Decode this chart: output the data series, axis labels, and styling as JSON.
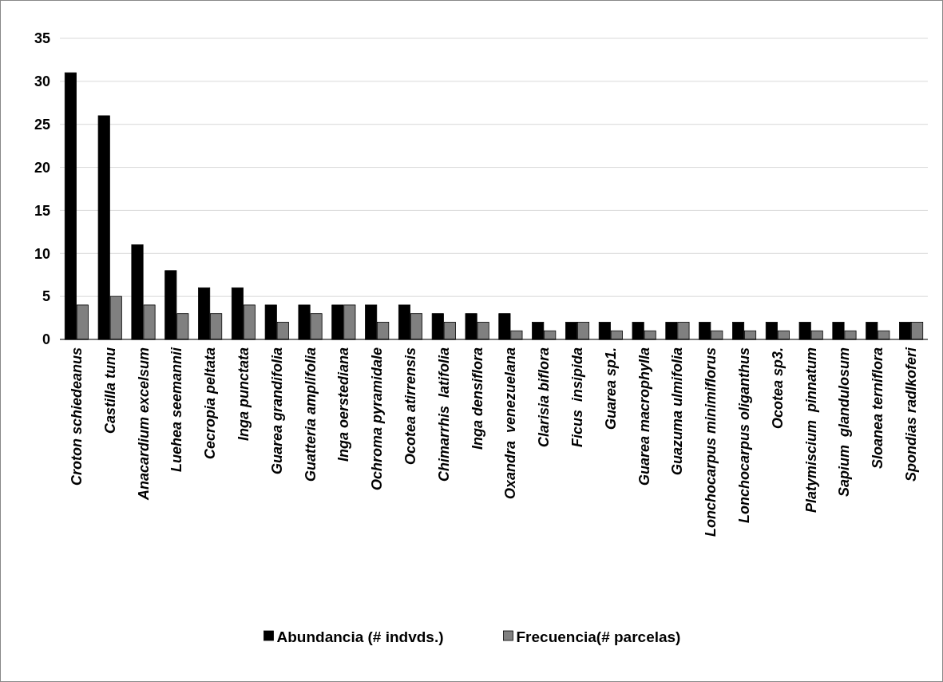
{
  "chart_data": {
    "type": "bar",
    "categories": [
      "Croton schiedeanus",
      "Castilla tunu",
      "Anacardium excelsum",
      "Luehea seemannii",
      "Cecropia peltata",
      "Inga punctata",
      "Guarea grandifolia",
      "Guatteria amplifolia",
      "Inga oerstediana",
      "Ochroma pyramidale",
      "Ocotea atirrensis",
      "Chimarrhis  latifolia",
      "Inga densiflora",
      "Oxandra  venezuelana",
      "Clarisia biflora",
      "Ficus  insipida",
      "Guarea sp1.",
      "Guarea macrophylla",
      "Guazuma ulmifolia",
      "Lonchocarpus minimiflorus",
      "Lonchocarpus oliganthus",
      "Ocotea sp3.",
      "Platymiscium  pinnatum",
      "Sapium  glandulosum",
      "Sloanea terniflora",
      "Spondias radlkoferi"
    ],
    "series": [
      {
        "name": "Abundancia (# indvds.)",
        "color": "#000000",
        "values": [
          31,
          26,
          11,
          8,
          6,
          6,
          4,
          4,
          4,
          4,
          4,
          3,
          3,
          3,
          2,
          2,
          2,
          2,
          2,
          2,
          2,
          2,
          2,
          2,
          2,
          2
        ]
      },
      {
        "name": "Frecuencia(# parcelas)",
        "color": "#808080",
        "values": [
          4,
          5,
          4,
          3,
          3,
          4,
          2,
          3,
          4,
          2,
          3,
          2,
          2,
          1,
          1,
          2,
          1,
          1,
          2,
          1,
          1,
          1,
          1,
          1,
          1,
          2
        ]
      }
    ],
    "ylim": [
      0,
      35
    ],
    "yticks": [
      0,
      5,
      10,
      15,
      20,
      25,
      30,
      35
    ],
    "grid": "y",
    "legend": "bottom"
  }
}
